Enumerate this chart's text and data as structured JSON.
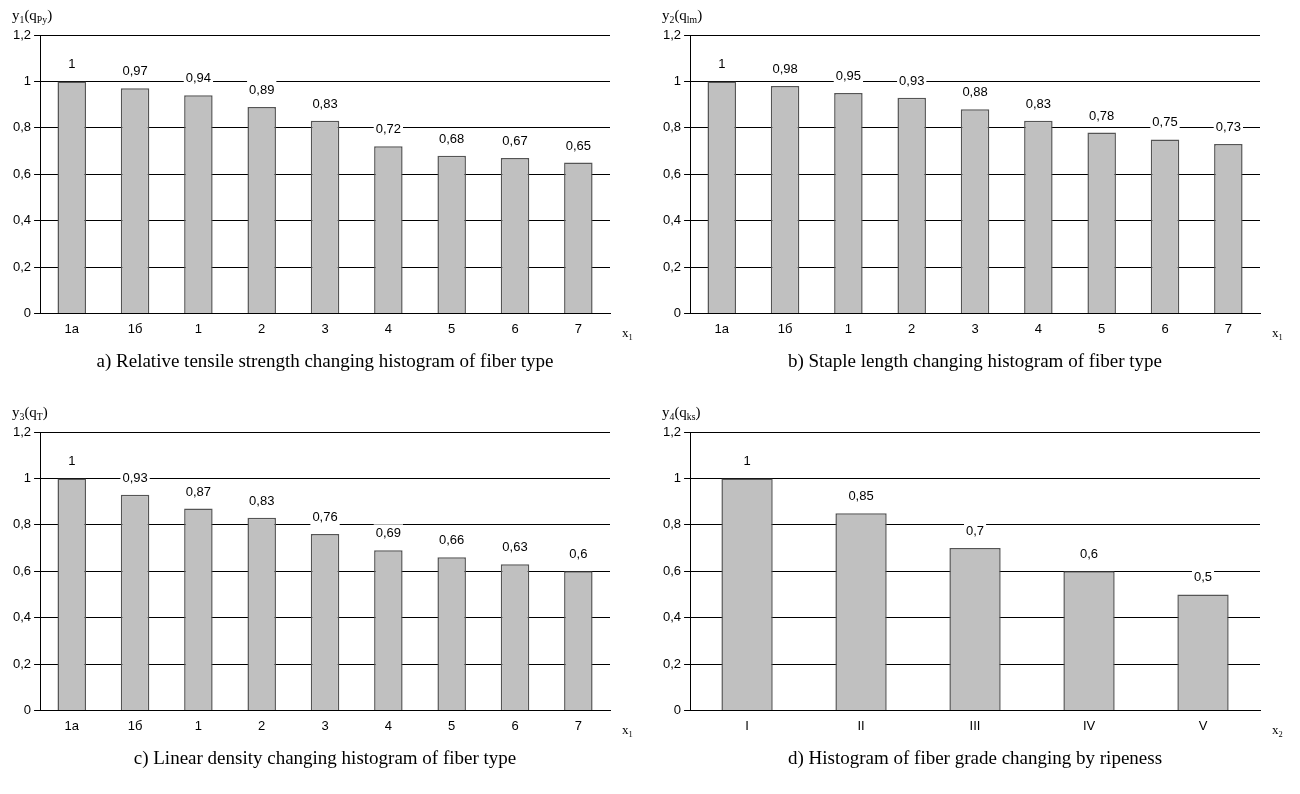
{
  "chart_data": [
    {
      "type": "bar",
      "title": "a) Relative tensile strength changing histogram of fiber type",
      "ylabel": "y$_{1}$(q$_{Py}$)",
      "xlabel": "x$_{1}$",
      "categories": [
        "1а",
        "1б",
        "1",
        "2",
        "3",
        "4",
        "5",
        "6",
        "7"
      ],
      "series": [
        {
          "color": "#c0c0c0",
          "values": [
            1,
            0.97,
            0.94,
            0.89,
            0.83,
            0.72,
            0.68,
            0.67,
            0.65
          ]
        }
      ],
      "value_labels": [
        "1",
        "0,97",
        "0,94",
        "0,89",
        "0,83",
        "0,72",
        "0,68",
        "0,67",
        "0,65"
      ],
      "ylim": [
        0,
        1.2
      ],
      "yticks": [
        {
          "value": 0,
          "label": "0"
        },
        {
          "value": 0.2,
          "label": "0,2"
        },
        {
          "value": 0.4,
          "label": "0,4"
        },
        {
          "value": 0.6,
          "label": "0,6"
        },
        {
          "value": 0.8,
          "label": "0,8"
        },
        {
          "value": 1,
          "label": "1"
        },
        {
          "value": 1.2,
          "label": "1,2"
        }
      ],
      "grid": "y",
      "legend": false
    },
    {
      "type": "bar",
      "title": "b) Staple length changing histogram of fiber type",
      "ylabel": "y$_{2}$(q$_{lm}$)",
      "xlabel": "x$_{1}$",
      "categories": [
        "1а",
        "1б",
        "1",
        "2",
        "3",
        "4",
        "5",
        "6",
        "7"
      ],
      "series": [
        {
          "color": "#c0c0c0",
          "values": [
            1,
            0.98,
            0.95,
            0.93,
            0.88,
            0.83,
            0.78,
            0.75,
            0.73
          ]
        }
      ],
      "value_labels": [
        "1",
        "0,98",
        "0,95",
        "0,93",
        "0,88",
        "0,83",
        "0,78",
        "0,75",
        "0,73"
      ],
      "ylim": [
        0,
        1.2
      ],
      "yticks": [
        {
          "value": 0,
          "label": "0"
        },
        {
          "value": 0.2,
          "label": "0,2"
        },
        {
          "value": 0.4,
          "label": "0,4"
        },
        {
          "value": 0.6,
          "label": "0,6"
        },
        {
          "value": 0.8,
          "label": "0,8"
        },
        {
          "value": 1,
          "label": "1"
        },
        {
          "value": 1.2,
          "label": "1,2"
        }
      ],
      "grid": "y",
      "legend": false
    },
    {
      "type": "bar",
      "title": "c) Linear density changing histogram of fiber type",
      "ylabel": "y$_{3}$(q$_{T}$)",
      "xlabel": "x$_{1}$",
      "categories": [
        "1а",
        "1б",
        "1",
        "2",
        "3",
        "4",
        "5",
        "6",
        "7"
      ],
      "series": [
        {
          "color": "#c0c0c0",
          "values": [
            1,
            0.93,
            0.87,
            0.83,
            0.76,
            0.69,
            0.66,
            0.63,
            0.6
          ]
        }
      ],
      "value_labels": [
        "1",
        "0,93",
        "0,87",
        "0,83",
        "0,76",
        "0,69",
        "0,66",
        "0,63",
        "0,6"
      ],
      "ylim": [
        0,
        1.2
      ],
      "yticks": [
        {
          "value": 0,
          "label": "0"
        },
        {
          "value": 0.2,
          "label": "0,2"
        },
        {
          "value": 0.4,
          "label": "0,4"
        },
        {
          "value": 0.6,
          "label": "0,6"
        },
        {
          "value": 0.8,
          "label": "0,8"
        },
        {
          "value": 1,
          "label": "1"
        },
        {
          "value": 1.2,
          "label": "1,2"
        }
      ],
      "grid": "y",
      "legend": false
    },
    {
      "type": "bar",
      "title": "d) Histogram of fiber grade changing by ripeness",
      "ylabel": "y$_{4}$(q$_{ks}$)",
      "xlabel": "x$_{2}$",
      "categories": [
        "I",
        "II",
        "III",
        "IV",
        "V"
      ],
      "series": [
        {
          "color": "#c0c0c0",
          "values": [
            1,
            0.85,
            0.7,
            0.6,
            0.5
          ]
        }
      ],
      "value_labels": [
        "1",
        "0,85",
        "0,7",
        "0,6",
        "0,5"
      ],
      "ylim": [
        0,
        1.2
      ],
      "yticks": [
        {
          "value": 0,
          "label": "0"
        },
        {
          "value": 0.2,
          "label": "0,2"
        },
        {
          "value": 0.4,
          "label": "0,4"
        },
        {
          "value": 0.6,
          "label": "0,6"
        },
        {
          "value": 0.8,
          "label": "0,8"
        },
        {
          "value": 1,
          "label": "1"
        },
        {
          "value": 1.2,
          "label": "1,2"
        }
      ],
      "grid": "y",
      "legend": false
    }
  ]
}
